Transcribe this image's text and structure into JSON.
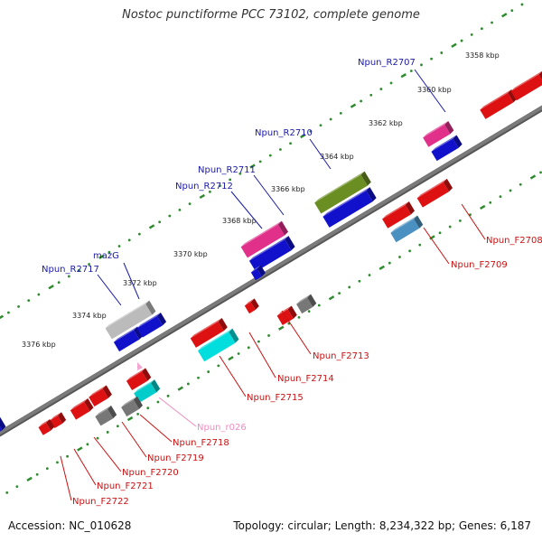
{
  "title": "Nostoc punctiforme PCC 73102, complete genome",
  "footer": {
    "accession": "Accession: NC_010628",
    "summary": "Topology: circular; Length: 8,234,322 bp; Genes: 6,187"
  },
  "colors": {
    "backbone": "#7a7a7a",
    "tick_dots": "#2e8b2e",
    "label_reverse": "#1a1aaa",
    "label_forward": "#cc1111",
    "label_rna": "#f08cc0"
  },
  "scale_labels": [
    "3358 kbp",
    "3360 kbp",
    "3362 kbp",
    "3364 kbp",
    "3366 kbp",
    "3368 kbp",
    "3370 kbp",
    "3372 kbp",
    "3374 kbp",
    "3376 kbp"
  ],
  "labels": [
    {
      "id": "Npun_R2707",
      "text": "Npun_R2707",
      "strand": "reverse"
    },
    {
      "id": "Npun_R2710",
      "text": "Npun_R2710",
      "strand": "reverse"
    },
    {
      "id": "Npun_R2711",
      "text": "Npun_R2711",
      "strand": "reverse"
    },
    {
      "id": "Npun_R2712",
      "text": "Npun_R2712",
      "strand": "reverse"
    },
    {
      "id": "mazG",
      "text": "mazG",
      "strand": "reverse"
    },
    {
      "id": "Npun_R2717",
      "text": "Npun_R2717",
      "strand": "reverse"
    },
    {
      "id": "Npun_F2708",
      "text": "Npun_F2708",
      "strand": "forward"
    },
    {
      "id": "Npun_F2709",
      "text": "Npun_F2709",
      "strand": "forward"
    },
    {
      "id": "Npun_F2713",
      "text": "Npun_F2713",
      "strand": "forward"
    },
    {
      "id": "Npun_F2714",
      "text": "Npun_F2714",
      "strand": "forward"
    },
    {
      "id": "Npun_F2715",
      "text": "Npun_F2715",
      "strand": "forward"
    },
    {
      "id": "Npun_r026",
      "text": "Npun_r026",
      "strand": "rna"
    },
    {
      "id": "Npun_F2718",
      "text": "Npun_F2718",
      "strand": "forward"
    },
    {
      "id": "Npun_F2719",
      "text": "Npun_F2719",
      "strand": "forward"
    },
    {
      "id": "Npun_F2720",
      "text": "Npun_F2720",
      "strand": "forward"
    },
    {
      "id": "Npun_F2721",
      "text": "Npun_F2721",
      "strand": "forward"
    },
    {
      "id": "Npun_F2722",
      "text": "Npun_F2722",
      "strand": "forward"
    }
  ]
}
